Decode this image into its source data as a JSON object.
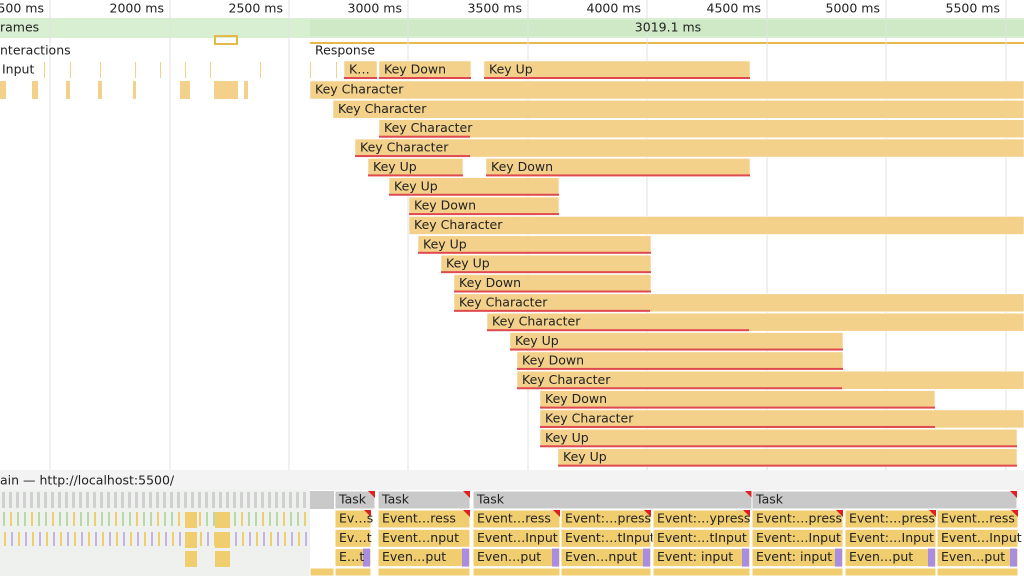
{
  "ruler": [
    "500 ms",
    "2000 ms",
    "2500 ms",
    "3000 ms",
    "3500 ms",
    "4000 ms",
    "4500 ms",
    "5000 ms",
    "5500 ms"
  ],
  "frames": {
    "label": "rames",
    "duration": "3019.1 ms"
  },
  "interactions": {
    "label": "nteractions",
    "response": "Response"
  },
  "input": {
    "label": "Input",
    "events": [
      "K…",
      "Key Down",
      "Key Up"
    ]
  },
  "events": [
    [
      "Key Character"
    ],
    [
      "Key Character"
    ],
    [
      "Key Character"
    ],
    [
      "Key Character"
    ],
    [
      "Key Up",
      "Key Down"
    ],
    [
      "Key Up"
    ],
    [
      "Key Down"
    ],
    [
      "Key Character"
    ],
    [
      "Key Up"
    ],
    [
      "Key Up"
    ],
    [
      "Key Down"
    ],
    [
      "Key Character"
    ],
    [
      "Key Character"
    ],
    [
      "Key Up"
    ],
    [
      "Key Down"
    ],
    [
      "Key Character"
    ],
    [
      "Key Down"
    ],
    [
      "Key Character"
    ],
    [
      "Key Up"
    ],
    [
      "Key Up"
    ]
  ],
  "main": {
    "label": "ain — http://localhost:5500/",
    "tasks": [
      "Task",
      "Task",
      "Task",
      "Task"
    ],
    "rows": [
      [
        "Ev…s",
        "Event…ress",
        "Event…ress",
        "Event:…press",
        "Event:…ypress",
        "Event:…press",
        "Event:…press",
        "Event…ress"
      ],
      [
        "Ev…t",
        "Event…nput",
        "Event…Input",
        "Event:…tInput",
        "Event:…tInput",
        "Event:…Input",
        "Event:…Input",
        "Event…Input"
      ],
      [
        "E…t",
        "Even…put",
        "Even…put",
        "Even…nput",
        "Event: input",
        "Event: input",
        "Even…put",
        "Even…put"
      ]
    ]
  }
}
